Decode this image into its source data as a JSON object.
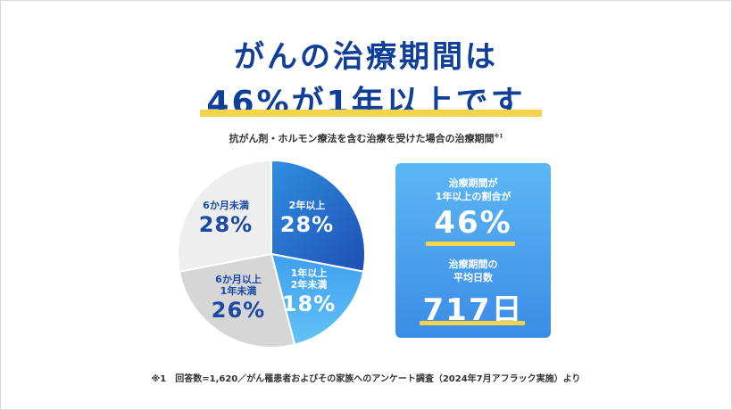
{
  "header": {
    "title_line1": "がんの治療期間は",
    "title_line2": "46%が1年以上です",
    "accent_color": "#f6d44a",
    "title_color": "#0f3f99"
  },
  "chart_data": {
    "type": "pie",
    "title": "抗がん剤・ホルモン療法を含む治療を受けた場合の治療期間",
    "title_note": "※1",
    "slices": [
      {
        "label": "2年以上",
        "value": 28,
        "display": "28%",
        "color": "#2e63c8"
      },
      {
        "label": "1年以上\n2年未満",
        "value": 18,
        "display": "18%",
        "color": "#4aaef0"
      },
      {
        "label": "6か月以上\n1年未満",
        "value": 26,
        "display": "26%",
        "color": "#d6d6d6"
      },
      {
        "label": "6か月未満",
        "value": 28,
        "display": "28%",
        "color": "#eeeeee"
      }
    ]
  },
  "panel": {
    "stat1_label": "治療期間が\n1年以上の割合が",
    "stat1_value": "46%",
    "stat2_label": "治療期間の\n平均日数",
    "stat2_value": "717日"
  },
  "footnote": "※1　回答数=1,620／がん罹患者およびその家族へのアンケート調査（2024年7月アフラック実施）より"
}
